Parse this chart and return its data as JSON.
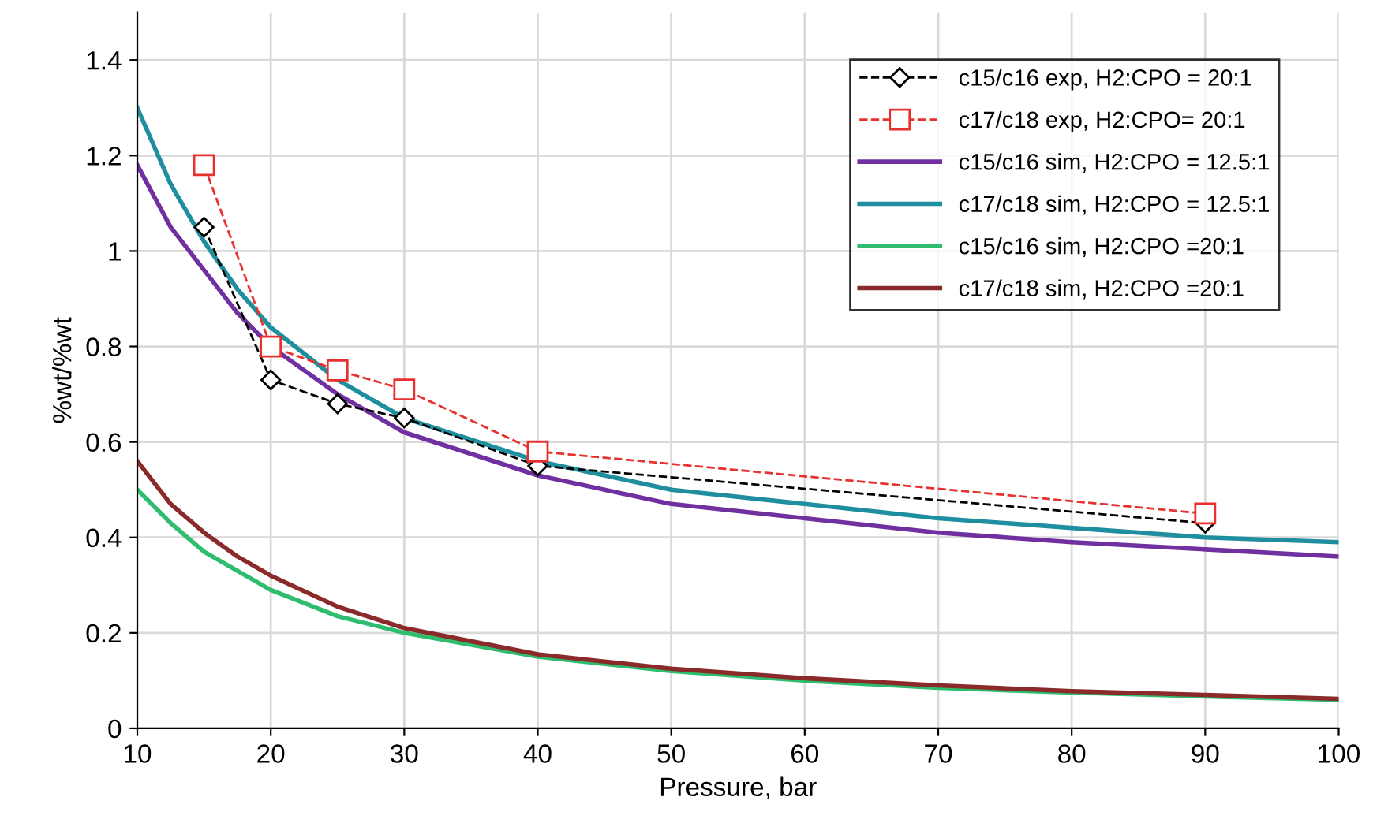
{
  "chart_data": {
    "type": "line",
    "xlabel": "Pressure, bar",
    "ylabel": "%wt/%wt",
    "xlim": [
      10,
      100
    ],
    "xticks": [
      10,
      20,
      30,
      40,
      50,
      60,
      70,
      80,
      90,
      100
    ],
    "ylim": [
      0,
      1.5
    ],
    "yticks": [
      0,
      0.2,
      0.4,
      0.6,
      0.8,
      1,
      1.2,
      1.4
    ],
    "grid": true,
    "legend": "top right",
    "series": [
      {
        "name": "c15/c16 exp, H2:CPO = 20:1",
        "color": "#000000",
        "marker": "diamond",
        "line_style": "dashed",
        "x": [
          15,
          20,
          25,
          30,
          40,
          90
        ],
        "values": [
          1.05,
          0.73,
          0.68,
          0.65,
          0.55,
          0.43
        ]
      },
      {
        "name": "c17/c18 exp, H2:CPO= 20:1",
        "color": "#e8312f",
        "marker": "square",
        "line_style": "dashed",
        "x": [
          15,
          20,
          25,
          30,
          40,
          90
        ],
        "values": [
          1.18,
          0.8,
          0.75,
          0.71,
          0.58,
          0.45
        ]
      },
      {
        "name": "c15/c16 sim, H2:CPO = 12.5:1",
        "color": "#7030a0",
        "marker": "none",
        "line_style": "solid",
        "x": [
          10,
          12.5,
          15,
          17.5,
          20,
          25,
          30,
          40,
          50,
          60,
          70,
          80,
          90,
          100
        ],
        "values": [
          1.18,
          1.05,
          0.96,
          0.87,
          0.8,
          0.7,
          0.62,
          0.53,
          0.47,
          0.44,
          0.41,
          0.39,
          0.375,
          0.36
        ]
      },
      {
        "name": "c17/c18 sim, H2:CPO = 12.5:1",
        "color": "#1f8fa0",
        "marker": "none",
        "line_style": "solid",
        "x": [
          10,
          12.5,
          15,
          17.5,
          20,
          25,
          30,
          40,
          50,
          60,
          70,
          80,
          90,
          100
        ],
        "values": [
          1.3,
          1.14,
          1.02,
          0.92,
          0.84,
          0.73,
          0.65,
          0.56,
          0.5,
          0.47,
          0.44,
          0.42,
          0.4,
          0.39
        ]
      },
      {
        "name": "c15/c16 sim, H2:CPO =20:1",
        "color": "#2ebd6e",
        "marker": "none",
        "line_style": "solid",
        "x": [
          10,
          12.5,
          15,
          17.5,
          20,
          25,
          30,
          40,
          50,
          60,
          70,
          80,
          90,
          100
        ],
        "values": [
          0.5,
          0.43,
          0.37,
          0.33,
          0.29,
          0.235,
          0.2,
          0.15,
          0.12,
          0.1,
          0.085,
          0.075,
          0.067,
          0.06
        ]
      },
      {
        "name": "c17/c18 sim, H2:CPO =20:1",
        "color": "#8b2a2a",
        "marker": "none",
        "line_style": "solid",
        "x": [
          10,
          12.5,
          15,
          17.5,
          20,
          25,
          30,
          40,
          50,
          60,
          70,
          80,
          90,
          100
        ],
        "values": [
          0.56,
          0.47,
          0.41,
          0.36,
          0.32,
          0.255,
          0.21,
          0.155,
          0.125,
          0.105,
          0.09,
          0.078,
          0.07,
          0.062
        ]
      }
    ]
  }
}
